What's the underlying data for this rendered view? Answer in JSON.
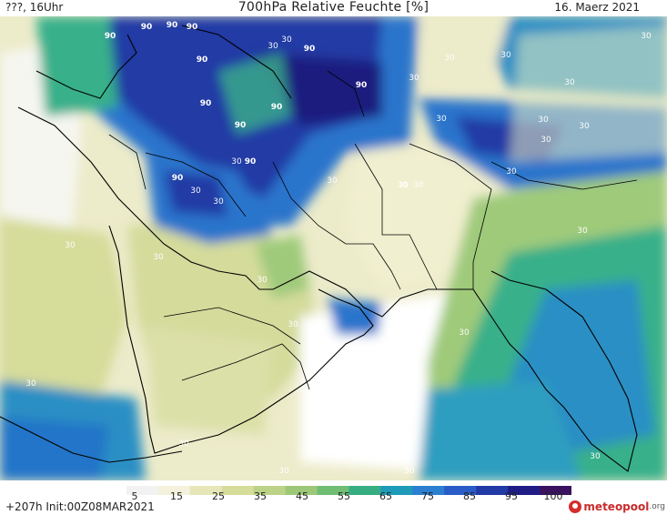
{
  "header": {
    "left": "???, 16Uhr",
    "title": "700hPa Relative Feuchte [%]",
    "date": "16. Maerz 2021"
  },
  "colorbar": {
    "ticks": [
      "5",
      "15",
      "25",
      "35",
      "45",
      "55",
      "65",
      "75",
      "85",
      "95",
      "100"
    ],
    "colors": [
      "#ffffff",
      "#f2f2f2",
      "#f4f2dc",
      "#e6e6b8",
      "#d6dc9a",
      "#bcd287",
      "#9cc878",
      "#6fbe74",
      "#37ae82",
      "#1d9bb8",
      "#2b7fd0",
      "#2a5cc8",
      "#223aa5",
      "#1f1d85",
      "#3a1260"
    ],
    "unit": "%"
  },
  "map": {
    "contour_labels": [
      "90",
      "90",
      "90",
      "90",
      "90",
      "90",
      "90",
      "90",
      "90",
      "90",
      "90",
      "90",
      "30",
      "30",
      "30",
      "30",
      "30",
      "30",
      "30",
      "30",
      "30",
      "30",
      "30",
      "30",
      "30",
      "30",
      "30",
      "30",
      "30",
      "30",
      "30",
      "30",
      "30",
      "30",
      "30",
      "30",
      "30",
      "30",
      "30",
      "30",
      "30",
      "30",
      "30"
    ]
  },
  "footer": {
    "run": "+207h  Init:00Z08MAR2021",
    "logo_brand": "meteopool",
    "logo_tld": ".org"
  },
  "palette": {
    "dry": "#ffffff",
    "light": "#ecebca",
    "olive": "#d4db9b",
    "green": "#9fca7a",
    "teal": "#39b08a",
    "cyan": "#1f9fc0",
    "blue": "#2c74cc",
    "navy": "#213aa3",
    "dark": "#1e1c7f",
    "coast": "#000000"
  }
}
